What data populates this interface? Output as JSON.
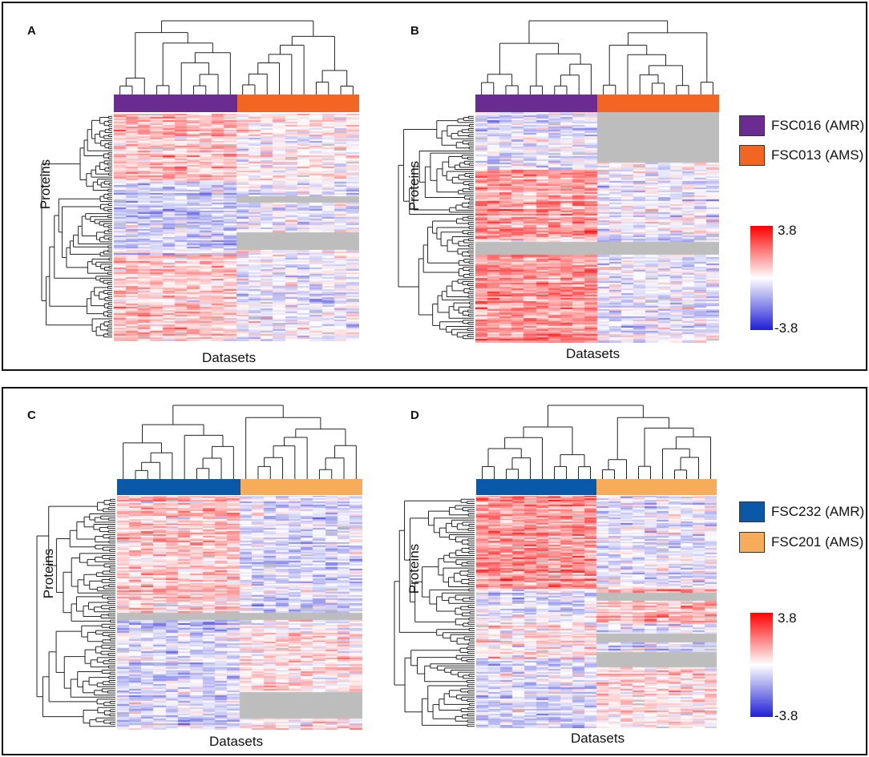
{
  "colors": {
    "amr_top": "#6a2c91",
    "ams_top": "#f26522",
    "amr_bottom": "#0a58a8",
    "ams_bottom": "#f7ac5a",
    "high": "#ff0000",
    "mid": "#ffffff",
    "low": "#1f1fd6",
    "missing": "#bdbdbd"
  },
  "legends": {
    "top": [
      {
        "label": "FSC016 (AMR)",
        "color": "#6a2c91"
      },
      {
        "label": "FSC013 (AMS)",
        "color": "#f26522"
      }
    ],
    "bottom": [
      {
        "label": "FSC232 (AMR)",
        "color": "#0a58a8"
      },
      {
        "label": "FSC201 (AMS)",
        "color": "#f7ac5a"
      }
    ]
  },
  "colorbar_top": {
    "max": "3.8",
    "min": "-3.8"
  },
  "colorbar_bottom": {
    "max": "3.8",
    "min": "-3.8"
  },
  "chart_data": [
    {
      "id": "A",
      "type": "heatmap",
      "panel_label": "A",
      "xlabel": "Datasets",
      "ylabel": "Proteins",
      "groups": [
        {
          "name": "FSC016 (AMR)",
          "columns": 10,
          "color": "#6a2c91"
        },
        {
          "name": "FSC013 (AMS)",
          "columns": 10,
          "color": "#f26522"
        }
      ],
      "value_range": [
        -3.8,
        3.8
      ],
      "rows": 140,
      "seed": 11,
      "blocks": [
        {
          "r0": 0.0,
          "r1": 0.3,
          "g0": 0.9,
          "g1": 0.2
        },
        {
          "r0": 0.3,
          "r1": 0.62,
          "g0": -0.8,
          "g1": -0.4
        },
        {
          "r0": 0.62,
          "r1": 1.0,
          "g0": 0.9,
          "g1": -0.2
        }
      ],
      "missing": [
        {
          "r0": 0.36,
          "r1": 0.39,
          "g": 1
        },
        {
          "r0": 0.52,
          "r1": 0.6,
          "g": 1
        }
      ]
    },
    {
      "id": "B",
      "type": "heatmap",
      "panel_label": "B",
      "xlabel": "Datasets",
      "ylabel": "Proteins",
      "groups": [
        {
          "name": "FSC016 (AMR)",
          "columns": 10,
          "color": "#6a2c91"
        },
        {
          "name": "FSC013 (AMS)",
          "columns": 10,
          "color": "#f26522"
        }
      ],
      "value_range": [
        -3.8,
        3.8
      ],
      "rows": 140,
      "seed": 23,
      "blocks": [
        {
          "r0": 0.0,
          "r1": 0.25,
          "g0": -0.5,
          "g1": 0
        },
        {
          "r0": 0.25,
          "r1": 0.56,
          "g0": 1.4,
          "g1": -0.3
        },
        {
          "r0": 0.56,
          "r1": 1.0,
          "g0": 1.6,
          "g1": -0.4
        }
      ],
      "missing": [
        {
          "r0": 0.0,
          "r1": 0.22,
          "g": 1
        },
        {
          "r0": 0.56,
          "r1": 0.62,
          "g": -1
        }
      ]
    },
    {
      "id": "C",
      "type": "heatmap",
      "panel_label": "C",
      "xlabel": "Datasets",
      "ylabel": "Proteins",
      "groups": [
        {
          "name": "FSC232 (AMR)",
          "columns": 10,
          "color": "#0a58a8"
        },
        {
          "name": "FSC201 (AMS)",
          "columns": 10,
          "color": "#f7ac5a"
        }
      ],
      "value_range": [
        -3.8,
        3.8
      ],
      "rows": 150,
      "seed": 37,
      "blocks": [
        {
          "r0": 0.0,
          "r1": 0.5,
          "g0": 0.8,
          "g1": -0.6
        },
        {
          "r0": 0.5,
          "r1": 1.0,
          "g0": -0.6,
          "g1": 0.4
        }
      ],
      "missing": [
        {
          "r0": 0.5,
          "r1": 0.53,
          "g": -1
        },
        {
          "r0": 0.84,
          "r1": 0.95,
          "g": 1
        }
      ]
    },
    {
      "id": "D",
      "type": "heatmap",
      "panel_label": "D",
      "xlabel": "Datasets",
      "ylabel": "Proteins",
      "groups": [
        {
          "name": "FSC232 (AMR)",
          "columns": 10,
          "color": "#0a58a8"
        },
        {
          "name": "FSC201 (AMS)",
          "columns": 10,
          "color": "#f7ac5a"
        }
      ],
      "value_range": [
        -3.8,
        3.8
      ],
      "rows": 150,
      "seed": 51,
      "blocks": [
        {
          "r0": 0.0,
          "r1": 0.4,
          "g0": 1.6,
          "g1": -0.4
        },
        {
          "r0": 0.4,
          "r1": 0.55,
          "g0": -0.4,
          "g1": 1.0
        },
        {
          "r0": 0.55,
          "r1": 0.7,
          "g0": 0.2,
          "g1": -0.5
        },
        {
          "r0": 0.7,
          "r1": 1.0,
          "g0": -0.6,
          "g1": 0.4
        }
      ],
      "missing": [
        {
          "r0": 0.42,
          "r1": 0.45,
          "g": 1
        },
        {
          "r0": 0.59,
          "r1": 0.63,
          "g": 1
        },
        {
          "r0": 0.67,
          "r1": 0.74,
          "g": 1
        }
      ]
    }
  ]
}
